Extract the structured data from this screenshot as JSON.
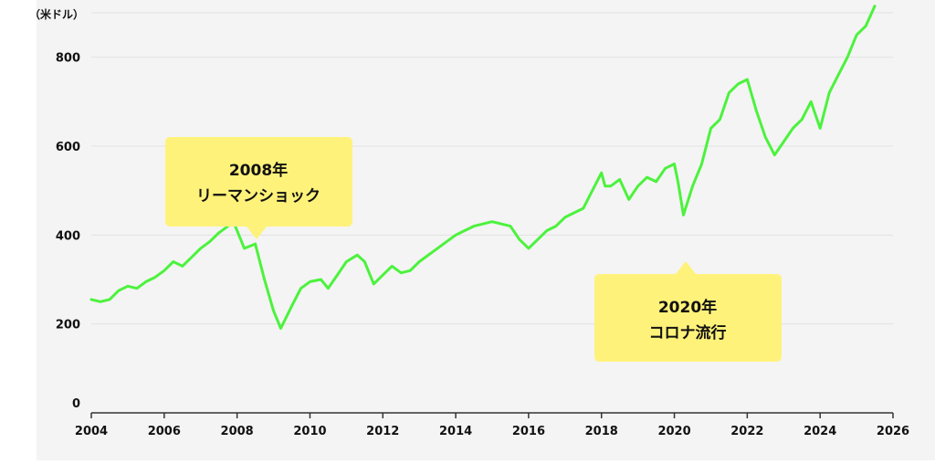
{
  "colors": {
    "background": "#ffffff",
    "plot_background": "#f4f4f4",
    "line": "#4cf23d",
    "callout": "#fff27a",
    "text": "#111111"
  },
  "chart_data": {
    "type": "line",
    "title": "",
    "xlabel": "",
    "ylabel": "",
    "unit_label": "（米ドル）",
    "xlim": [
      2004,
      2026
    ],
    "ylim": [
      0,
      900
    ],
    "x_ticks": [
      2004,
      2006,
      2008,
      2010,
      2012,
      2014,
      2016,
      2018,
      2020,
      2022,
      2024,
      2026
    ],
    "y_ticks": [
      0,
      200,
      400,
      600,
      800
    ],
    "grid": "horizontal",
    "series": [
      {
        "values_x": [
          2004.0,
          2004.25,
          2004.5,
          2004.75,
          2005.0,
          2005.25,
          2005.5,
          2005.75,
          2006.0,
          2006.25,
          2006.5,
          2006.75,
          2007.0,
          2007.25,
          2007.5,
          2007.75,
          2007.9,
          2008.2,
          2008.5,
          2008.75,
          2009.0,
          2009.2,
          2009.5,
          2009.75,
          2010.0,
          2010.3,
          2010.5,
          2010.75,
          2011.0,
          2011.3,
          2011.5,
          2011.75,
          2012.0,
          2012.25,
          2012.5,
          2012.75,
          2013.0,
          2013.5,
          2014.0,
          2014.5,
          2015.0,
          2015.5,
          2015.75,
          2016.0,
          2016.5,
          2016.75,
          2017.0,
          2017.5,
          2018.0,
          2018.1,
          2018.25,
          2018.5,
          2018.75,
          2019.0,
          2019.25,
          2019.5,
          2019.75,
          2020.0,
          2020.1,
          2020.25,
          2020.5,
          2020.75,
          2021.0,
          2021.25,
          2021.5,
          2021.75,
          2022.0,
          2022.25,
          2022.5,
          2022.75,
          2023.0,
          2023.25,
          2023.5,
          2023.75,
          2024.0,
          2024.25,
          2024.5,
          2024.75,
          2025.0,
          2025.25,
          2025.5
        ],
        "values_y": [
          255,
          250,
          255,
          275,
          285,
          280,
          295,
          305,
          320,
          340,
          330,
          350,
          370,
          385,
          405,
          420,
          430,
          370,
          380,
          300,
          230,
          190,
          240,
          280,
          295,
          300,
          280,
          310,
          340,
          355,
          340,
          290,
          310,
          330,
          315,
          320,
          340,
          370,
          400,
          420,
          430,
          420,
          390,
          370,
          410,
          420,
          440,
          460,
          540,
          510,
          510,
          525,
          480,
          510,
          530,
          520,
          550,
          560,
          520,
          445,
          510,
          560,
          640,
          660,
          720,
          740,
          750,
          680,
          620,
          580,
          610,
          640,
          660,
          700,
          640,
          720,
          760,
          800,
          850,
          870,
          915
        ]
      }
    ],
    "annotations": [
      {
        "label": "2008年リーマンショック",
        "x": 2008.5,
        "y": 430
      },
      {
        "label": "2020年コロナ流行",
        "x": 2020.25,
        "y": 445
      }
    ]
  },
  "callouts": {
    "lehman_line1": "2008年",
    "lehman_line2": "リーマンショック",
    "corona_line1": "2020年",
    "corona_line2": "コロナ流行"
  }
}
